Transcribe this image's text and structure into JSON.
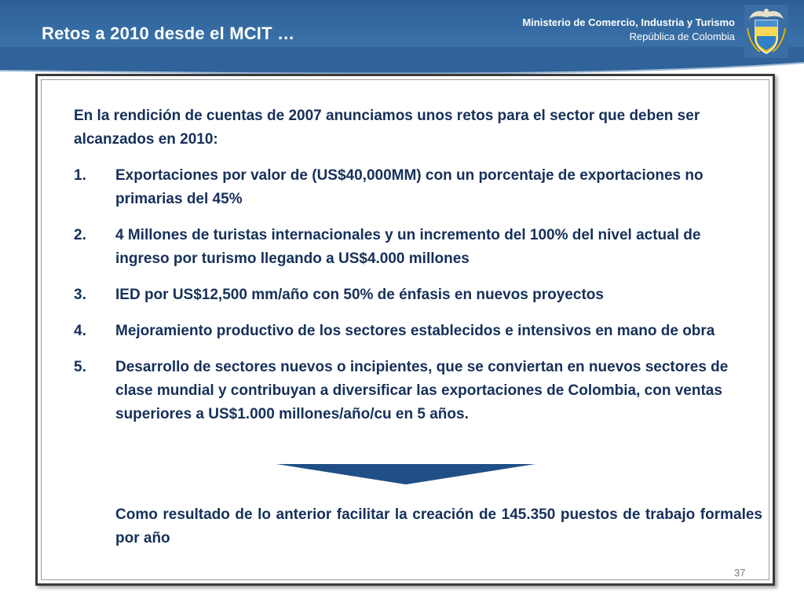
{
  "header": {
    "title": "Retos a 2010 desde el MCIT …",
    "ministry": "Ministerio de Comercio, Industria y Turismo",
    "country": "República de Colombia",
    "crest_icon": "colombia-coat-of-arms-icon",
    "color": "#2f6399"
  },
  "content": {
    "intro": "En la rendición de cuentas de 2007 anunciamos unos retos para el sector que deben ser alcanzados en  2010:",
    "items": [
      {
        "number": "1.",
        "text": "Exportaciones por valor de (US$40,000MM) con un porcentaje de exportaciones no primarias del 45%"
      },
      {
        "number": "2.",
        "text": "4 Millones de turistas internacionales y un incremento del 100% del nivel actual de ingreso por turismo llegando a US$4.000 millones"
      },
      {
        "number": "3.",
        "text": "IED por US$12,500 mm/año con 50% de énfasis en nuevos proyectos"
      },
      {
        "number": "4.",
        "text": "Mejoramiento productivo de los sectores establecidos e intensivos en mano de obra"
      },
      {
        "number": "5.",
        "text": "Desarrollo de sectores nuevos o incipientes, que se conviertan en nuevos sectores de clase mundial y contribuyan a diversificar las exportaciones de Colombia, con ventas superiores a US$1.000 millones/año/cu  en 5 años."
      }
    ],
    "arrow_icon": "down-arrow-icon",
    "result": "Como resultado de lo anterior facilitar la creación de 145.350 puestos de trabajo formales por año",
    "text_color": "#16305a"
  },
  "page_number": "37"
}
